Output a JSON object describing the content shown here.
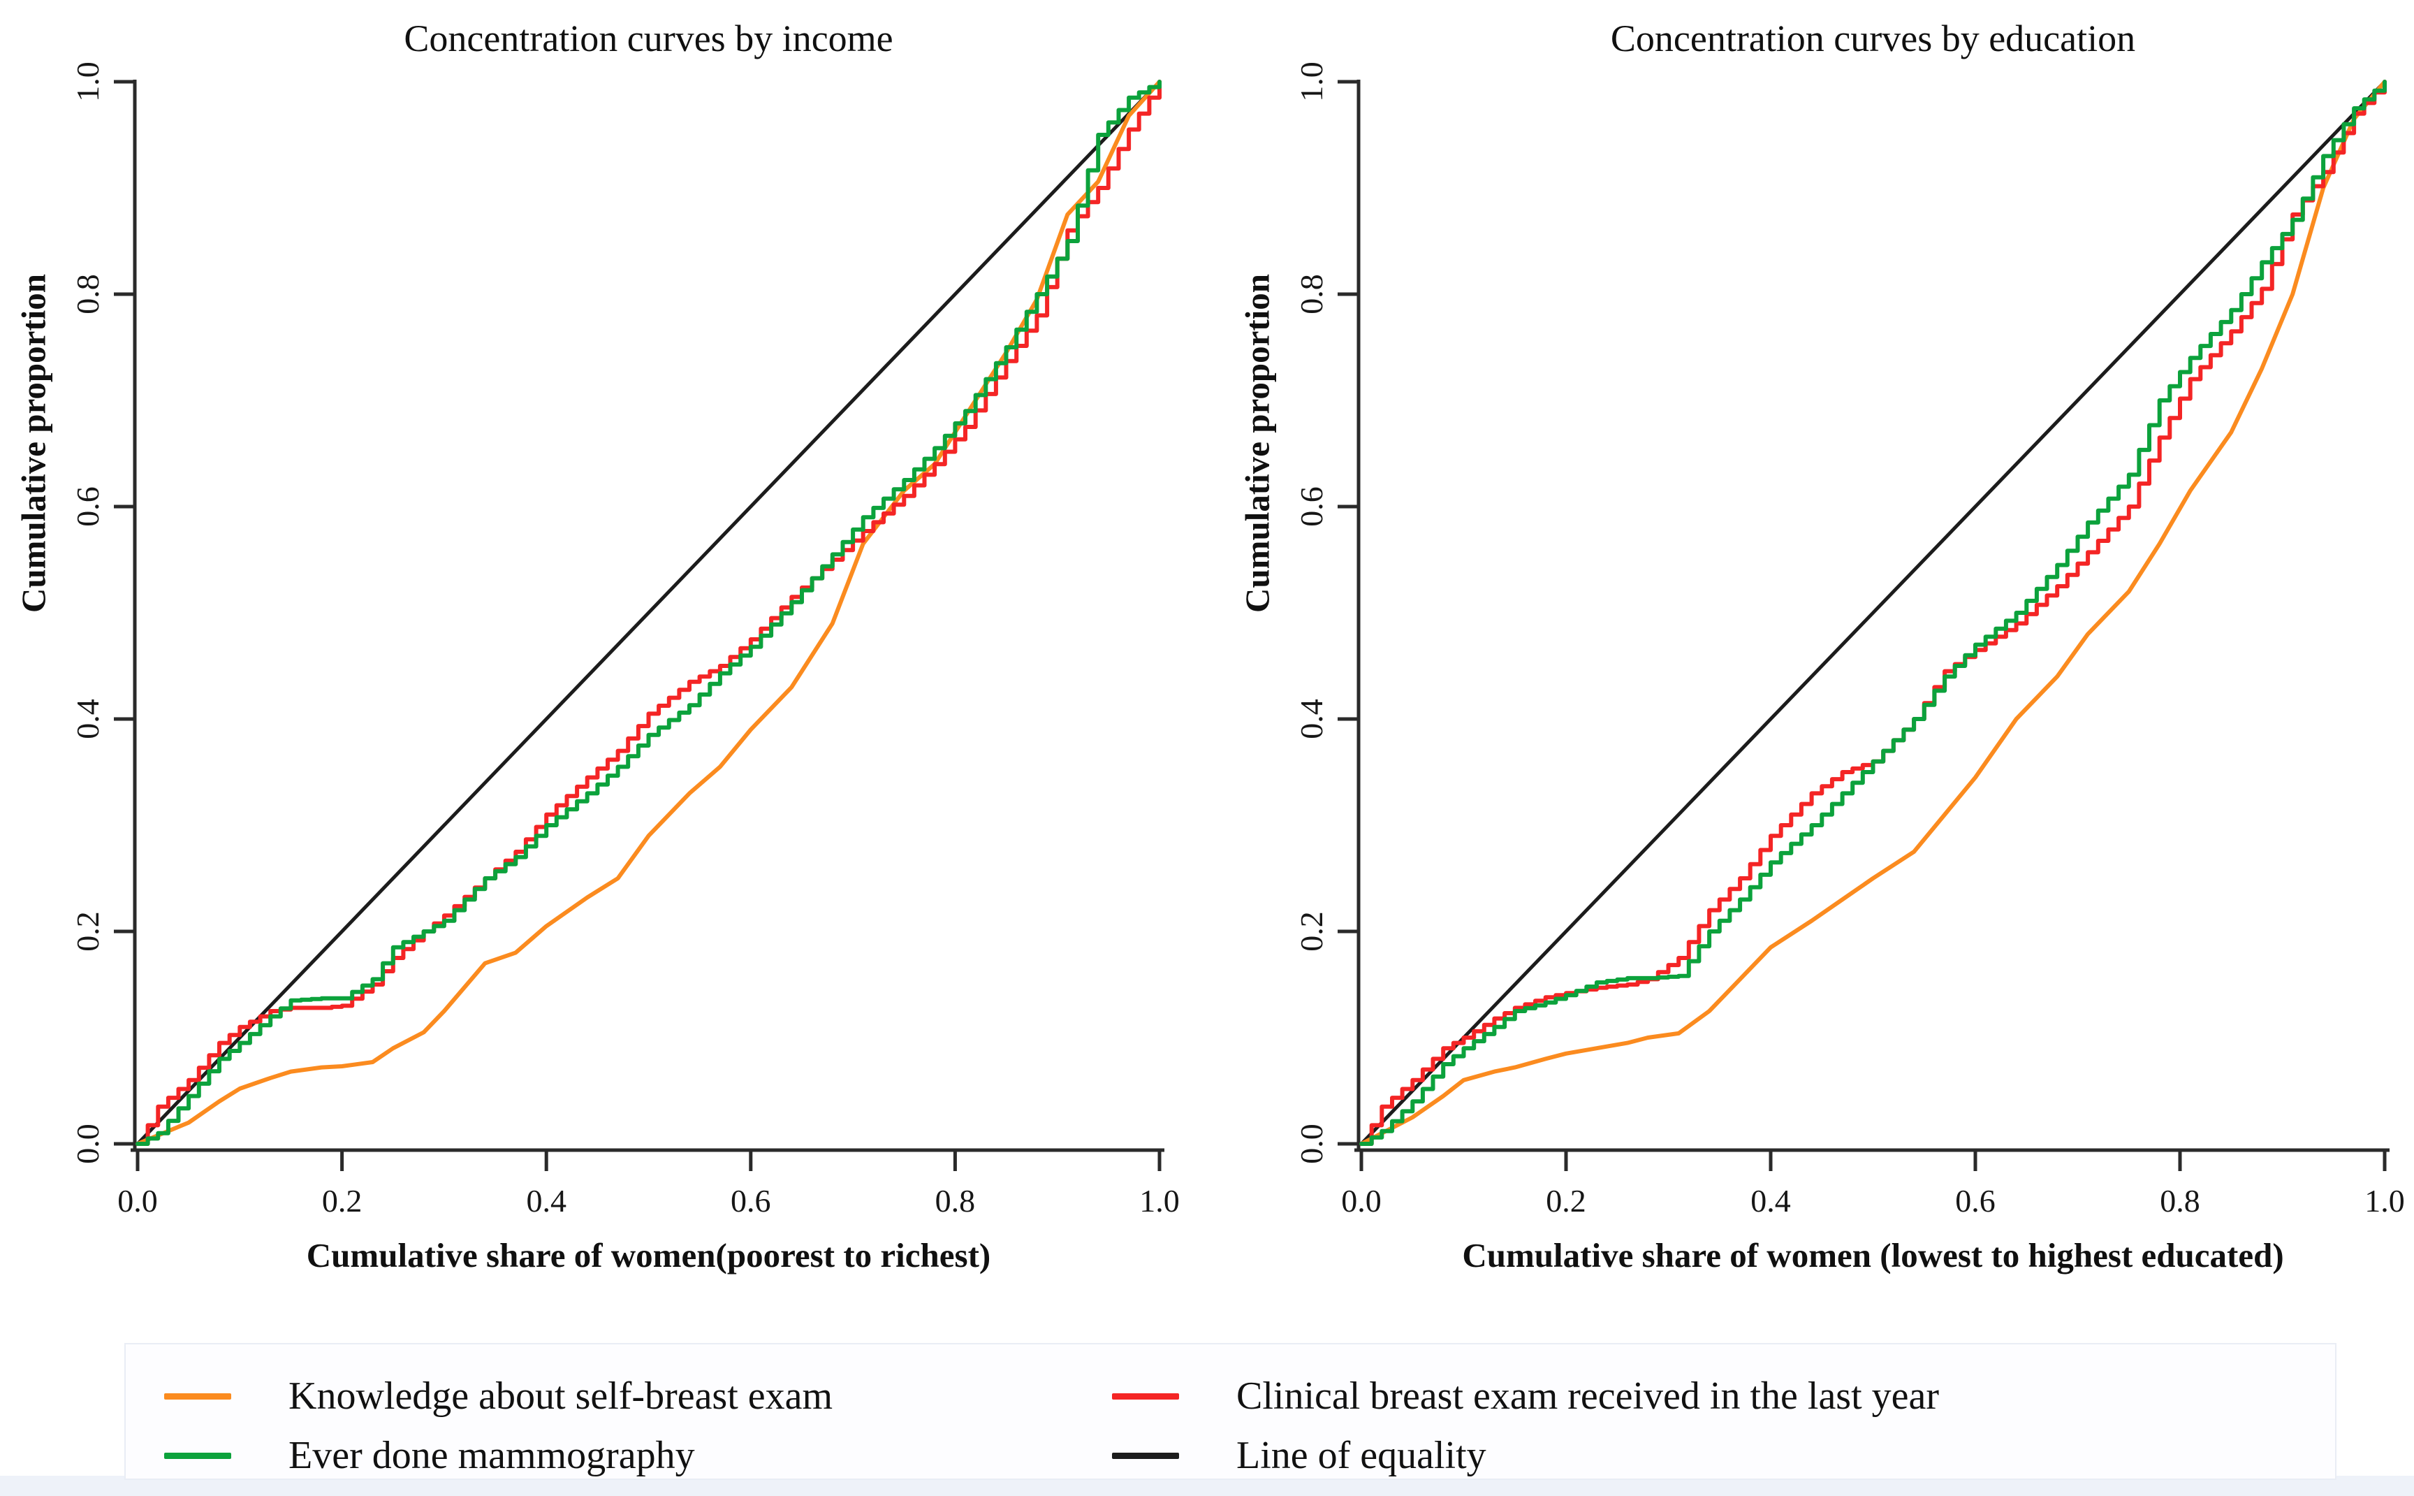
{
  "figure": {
    "background": "#ffffff",
    "footer_band_color": "#eef2f9",
    "text_color": "#141414"
  },
  "colors": {
    "orange": "#fb8b1f",
    "green": "#0ca23c",
    "red": "#f42525",
    "black": "#1c1c1c",
    "axis": "#2a2a2a"
  },
  "legend": {
    "items": [
      {
        "label": "Knowledge about self-breast exam",
        "color": "#fb8b1f"
      },
      {
        "label": "Ever done mammography",
        "color": "#0ca23c"
      },
      {
        "label": "Clinical breast exam received in the last year",
        "color": "#f42525"
      },
      {
        "label": "Line of equality",
        "color": "#1c1c1c"
      }
    ]
  },
  "chart_data": [
    {
      "type": "line",
      "title": "Concentration curves by income",
      "xlabel": "Cumulative share of women(poorest to richest)",
      "ylabel": "Cumulative proportion",
      "xlim": [
        0,
        1
      ],
      "ylim": [
        0,
        1
      ],
      "grid": false,
      "legend_position": "bottom",
      "x_ticks": [
        "0.0",
        "0.2",
        "0.4",
        "0.6",
        "0.8",
        "1.0"
      ],
      "y_ticks": [
        "0.0",
        "0.2",
        "0.4",
        "0.6",
        "0.8",
        "1.0"
      ],
      "x": [
        0,
        0.02,
        0.05,
        0.08,
        0.1,
        0.13,
        0.15,
        0.18,
        0.2,
        0.23,
        0.25,
        0.28,
        0.3,
        0.34,
        0.37,
        0.4,
        0.44,
        0.47,
        0.5,
        0.54,
        0.57,
        0.6,
        0.64,
        0.68,
        0.71,
        0.75,
        0.78,
        0.81,
        0.85,
        0.88,
        0.91,
        0.94,
        0.97,
        1
      ],
      "series": [
        {
          "name": "Line of equality",
          "color": "#1c1c1c",
          "style": "straight",
          "x": [
            0,
            1
          ],
          "y": [
            0,
            1
          ]
        },
        {
          "name": "Knowledge about self-breast exam",
          "color": "#fb8b1f",
          "style": "smooth",
          "y": [
            0,
            0.008,
            0.02,
            0.04,
            0.052,
            0.062,
            0.068,
            0.072,
            0.073,
            0.077,
            0.09,
            0.105,
            0.125,
            0.17,
            0.18,
            0.205,
            0.232,
            0.25,
            0.29,
            0.33,
            0.355,
            0.39,
            0.43,
            0.49,
            0.565,
            0.615,
            0.64,
            0.685,
            0.745,
            0.795,
            0.875,
            0.906,
            0.968,
            1
          ]
        },
        {
          "name": "Clinical breast exam received in the last year",
          "color": "#f42525",
          "style": "step",
          "y": [
            0,
            0.035,
            0.06,
            0.095,
            0.11,
            0.125,
            0.128,
            0.128,
            0.13,
            0.15,
            0.175,
            0.2,
            0.215,
            0.25,
            0.275,
            0.31,
            0.345,
            0.37,
            0.405,
            0.435,
            0.45,
            0.475,
            0.515,
            0.55,
            0.577,
            0.61,
            0.64,
            0.675,
            0.737,
            0.78,
            0.86,
            0.9,
            0.955,
            1
          ]
        },
        {
          "name": "Ever done mammography",
          "color": "#0ca23c",
          "style": "step",
          "y": [
            0,
            0.01,
            0.045,
            0.08,
            0.095,
            0.12,
            0.135,
            0.137,
            0.137,
            0.155,
            0.185,
            0.2,
            0.21,
            0.25,
            0.27,
            0.3,
            0.33,
            0.355,
            0.385,
            0.413,
            0.443,
            0.468,
            0.51,
            0.555,
            0.59,
            0.625,
            0.655,
            0.69,
            0.75,
            0.8,
            0.85,
            0.95,
            0.985,
            1
          ]
        }
      ]
    },
    {
      "type": "line",
      "title": "Concentration curves by education",
      "xlabel": "Cumulative share of women (lowest to highest educated)",
      "ylabel": "Cumulative proportion",
      "xlim": [
        0,
        1
      ],
      "ylim": [
        0,
        1
      ],
      "grid": false,
      "legend_position": "bottom",
      "x_ticks": [
        "0.0",
        "0.2",
        "0.4",
        "0.6",
        "0.8",
        "1.0"
      ],
      "y_ticks": [
        "0.0",
        "0.2",
        "0.4",
        "0.6",
        "0.8",
        "1.0"
      ],
      "x": [
        0,
        0.02,
        0.05,
        0.08,
        0.1,
        0.13,
        0.15,
        0.18,
        0.2,
        0.23,
        0.26,
        0.28,
        0.31,
        0.34,
        0.37,
        0.4,
        0.44,
        0.47,
        0.5,
        0.54,
        0.57,
        0.6,
        0.64,
        0.68,
        0.71,
        0.75,
        0.78,
        0.81,
        0.85,
        0.88,
        0.91,
        0.94,
        0.97,
        1
      ],
      "series": [
        {
          "name": "Line of equality",
          "color": "#1c1c1c",
          "style": "straight",
          "x": [
            0,
            1
          ],
          "y": [
            0,
            1
          ]
        },
        {
          "name": "Knowledge about self-breast exam",
          "color": "#fb8b1f",
          "style": "smooth",
          "y": [
            0,
            0.01,
            0.025,
            0.045,
            0.06,
            0.068,
            0.072,
            0.08,
            0.085,
            0.09,
            0.095,
            0.1,
            0.104,
            0.125,
            0.155,
            0.185,
            0.21,
            0.23,
            0.25,
            0.275,
            0.31,
            0.345,
            0.4,
            0.44,
            0.48,
            0.52,
            0.565,
            0.615,
            0.67,
            0.73,
            0.8,
            0.9,
            0.965,
            1
          ]
        },
        {
          "name": "Clinical breast exam received in the last year",
          "color": "#f42525",
          "style": "step",
          "y": [
            0,
            0.035,
            0.06,
            0.09,
            0.1,
            0.118,
            0.128,
            0.138,
            0.142,
            0.147,
            0.15,
            0.155,
            0.175,
            0.22,
            0.25,
            0.29,
            0.33,
            0.35,
            0.36,
            0.4,
            0.445,
            0.465,
            0.49,
            0.525,
            0.557,
            0.6,
            0.665,
            0.72,
            0.765,
            0.805,
            0.875,
            0.915,
            0.97,
            1
          ]
        },
        {
          "name": "Ever done mammography",
          "color": "#0ca23c",
          "style": "step",
          "y": [
            0,
            0.012,
            0.04,
            0.075,
            0.09,
            0.11,
            0.125,
            0.133,
            0.14,
            0.152,
            0.156,
            0.156,
            0.158,
            0.2,
            0.23,
            0.265,
            0.3,
            0.33,
            0.36,
            0.4,
            0.44,
            0.47,
            0.5,
            0.545,
            0.585,
            0.63,
            0.7,
            0.74,
            0.785,
            0.83,
            0.87,
            0.93,
            0.975,
            1
          ]
        }
      ]
    }
  ]
}
